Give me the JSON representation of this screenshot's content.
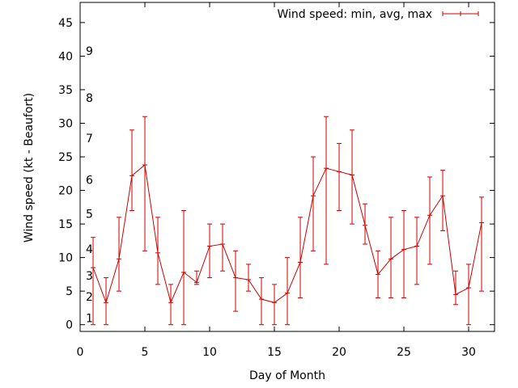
{
  "chart_data": {
    "type": "line",
    "title": "",
    "xlabel": "Day of Month",
    "ylabel": "Wind speed (kt - Beaufort)",
    "xlim": [
      0,
      32
    ],
    "ylim": [
      -1,
      48
    ],
    "xticks": [
      0,
      5,
      10,
      15,
      20,
      25,
      30
    ],
    "yticks": [
      0,
      5,
      10,
      15,
      20,
      25,
      30,
      35,
      40,
      45
    ],
    "grid": false,
    "legend_position": "top-right",
    "colors": {
      "series": "#cc0000",
      "axis": "#000000"
    },
    "beaufort_labels": [
      {
        "label": "1",
        "y": 1.0
      },
      {
        "label": "2",
        "y": 4.2
      },
      {
        "label": "3",
        "y": 7.3
      },
      {
        "label": "4",
        "y": 11.3
      },
      {
        "label": "5",
        "y": 16.5
      },
      {
        "label": "6",
        "y": 21.6
      },
      {
        "label": "7",
        "y": 27.8
      },
      {
        "label": "8",
        "y": 33.8
      },
      {
        "label": "9",
        "y": 40.8
      }
    ],
    "series": [
      {
        "name": "Wind speed: min, avg, max",
        "x": [
          1,
          2,
          3,
          4,
          5,
          6,
          7,
          8,
          9,
          10,
          11,
          12,
          13,
          14,
          15,
          16,
          17,
          18,
          19,
          20,
          21,
          22,
          23,
          24,
          25,
          26,
          27,
          28,
          29,
          30,
          31
        ],
        "avg": [
          8.5,
          3.3,
          9.8,
          22.2,
          23.8,
          10.7,
          3.3,
          7.8,
          6.3,
          11.7,
          12.0,
          7.0,
          6.7,
          3.8,
          3.3,
          4.7,
          9.3,
          19.2,
          23.3,
          22.8,
          22.3,
          14.8,
          7.5,
          9.8,
          11.2,
          11.7,
          16.3,
          19.2,
          4.5,
          5.5,
          15.2
        ],
        "min": [
          0,
          0,
          5,
          17,
          11,
          6,
          0,
          0,
          6,
          7,
          8,
          2,
          5,
          0,
          0,
          0,
          4,
          11,
          9,
          17,
          15,
          12,
          4,
          4,
          4,
          6,
          9,
          14,
          3,
          0,
          5
        ],
        "max": [
          13,
          7,
          16,
          29,
          31,
          16,
          6,
          17,
          8,
          15,
          15,
          11,
          9,
          7,
          6,
          10,
          16,
          25,
          31,
          27,
          29,
          18,
          11,
          16,
          17,
          16,
          22,
          23,
          8,
          9,
          19
        ]
      }
    ]
  }
}
